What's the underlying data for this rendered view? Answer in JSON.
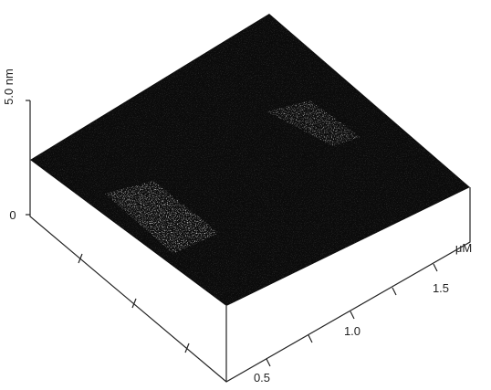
{
  "z_axis": {
    "max_label": "5.0 nm",
    "zero_label": "0"
  },
  "x_axis": {
    "unit": "μM",
    "tick_labels": [
      "0.5",
      "1.0",
      "1.5"
    ]
  }
}
